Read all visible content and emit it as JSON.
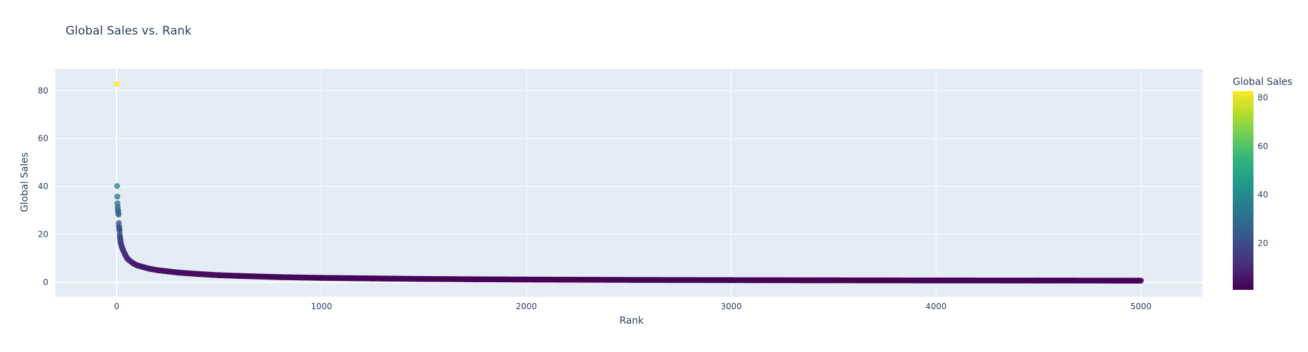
{
  "chart_data": {
    "type": "scatter",
    "title": "Global Sales vs. Rank",
    "xlabel": "Rank",
    "ylabel": "Global Sales",
    "xlim": [
      -300,
      5300
    ],
    "ylim": [
      -6,
      89
    ],
    "xticks": [
      0,
      1000,
      2000,
      3000,
      4000,
      5000
    ],
    "yticks": [
      0,
      20,
      40,
      60,
      80
    ],
    "grid": true,
    "colorbar": {
      "title": "Global Sales",
      "range": [
        0.8,
        82.7
      ],
      "ticks": [
        20,
        40,
        60,
        80
      ],
      "colorscale": "viridis"
    },
    "points": [
      {
        "x": 1,
        "y": 82.7
      },
      {
        "x": 2,
        "y": 40.2
      },
      {
        "x": 3,
        "y": 35.8
      },
      {
        "x": 4,
        "y": 33.0
      },
      {
        "x": 5,
        "y": 31.4
      },
      {
        "x": 6,
        "y": 30.3
      },
      {
        "x": 7,
        "y": 29.8
      },
      {
        "x": 8,
        "y": 28.9
      },
      {
        "x": 9,
        "y": 28.3
      },
      {
        "x": 10,
        "y": 24.8
      },
      {
        "x": 11,
        "y": 23.4
      },
      {
        "x": 12,
        "y": 22.9
      },
      {
        "x": 13,
        "y": 22.0
      },
      {
        "x": 14,
        "y": 21.8
      },
      {
        "x": 15,
        "y": 20.2
      },
      {
        "x": 16,
        "y": 19.0
      },
      {
        "x": 18,
        "y": 17.8
      },
      {
        "x": 20,
        "y": 16.3
      },
      {
        "x": 25,
        "y": 14.9
      },
      {
        "x": 30,
        "y": 13.7
      },
      {
        "x": 40,
        "y": 11.8
      },
      {
        "x": 50,
        "y": 10.2
      },
      {
        "x": 60,
        "y": 9.3
      },
      {
        "x": 80,
        "y": 8.0
      },
      {
        "x": 100,
        "y": 7.1
      },
      {
        "x": 130,
        "y": 6.4
      },
      {
        "x": 160,
        "y": 5.7
      },
      {
        "x": 200,
        "y": 5.1
      },
      {
        "x": 250,
        "y": 4.6
      },
      {
        "x": 300,
        "y": 4.1
      },
      {
        "x": 400,
        "y": 3.5
      },
      {
        "x": 500,
        "y": 3.0
      },
      {
        "x": 600,
        "y": 2.7
      },
      {
        "x": 800,
        "y": 2.2
      },
      {
        "x": 1000,
        "y": 1.9
      },
      {
        "x": 1250,
        "y": 1.65
      },
      {
        "x": 1500,
        "y": 1.45
      },
      {
        "x": 1750,
        "y": 1.3
      },
      {
        "x": 2000,
        "y": 1.2
      },
      {
        "x": 2500,
        "y": 1.05
      },
      {
        "x": 3000,
        "y": 0.95
      },
      {
        "x": 3500,
        "y": 0.88
      },
      {
        "x": 4000,
        "y": 0.82
      },
      {
        "x": 4500,
        "y": 0.78
      },
      {
        "x": 5000,
        "y": 0.75
      }
    ]
  }
}
